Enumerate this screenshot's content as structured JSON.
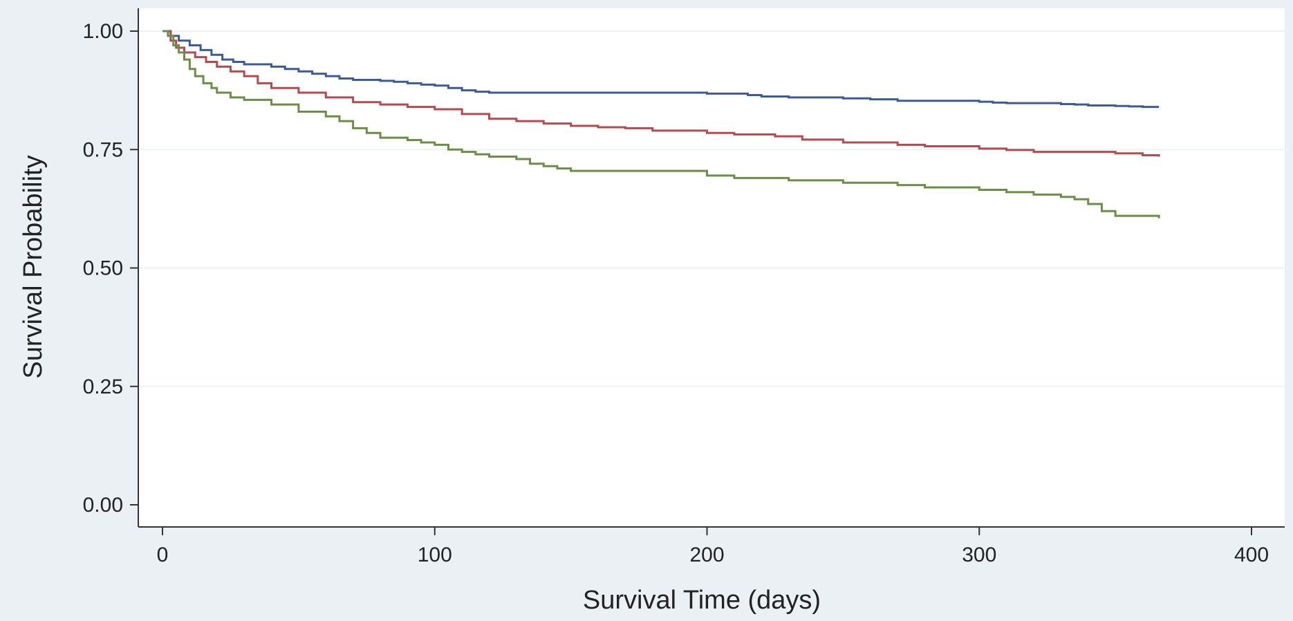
{
  "chart_data": {
    "type": "line",
    "title": "",
    "xlabel": "Survival Time (days)",
    "ylabel": "Survival Probability",
    "xlim": [
      0,
      400
    ],
    "ylim": [
      0,
      1
    ],
    "x_ticks": [
      "0",
      "100",
      "200",
      "300",
      "400"
    ],
    "y_ticks": [
      "0.00",
      "0.25",
      "0.50",
      "0.75",
      "1.00"
    ],
    "grid": true,
    "step": true,
    "series": [
      {
        "color": "#3c5a94",
        "x": [
          0,
          3,
          6,
          10,
          14,
          18,
          22,
          26,
          30,
          40,
          45,
          50,
          55,
          60,
          65,
          70,
          80,
          85,
          90,
          95,
          100,
          105,
          110,
          115,
          120,
          150,
          200,
          215,
          220,
          230,
          250,
          260,
          270,
          300,
          305,
          310,
          330,
          335,
          340,
          350,
          355,
          360,
          366
        ],
        "y": [
          1.0,
          0.99,
          0.98,
          0.97,
          0.96,
          0.95,
          0.94,
          0.935,
          0.93,
          0.925,
          0.92,
          0.915,
          0.91,
          0.905,
          0.9,
          0.897,
          0.895,
          0.893,
          0.89,
          0.887,
          0.885,
          0.88,
          0.875,
          0.872,
          0.87,
          0.87,
          0.868,
          0.865,
          0.862,
          0.86,
          0.858,
          0.856,
          0.853,
          0.851,
          0.849,
          0.848,
          0.846,
          0.845,
          0.843,
          0.842,
          0.841,
          0.84,
          0.84
        ]
      },
      {
        "color": "#b5494f",
        "x": [
          0,
          3,
          5,
          8,
          12,
          16,
          20,
          25,
          30,
          35,
          40,
          50,
          60,
          70,
          80,
          90,
          100,
          110,
          120,
          130,
          140,
          150,
          160,
          170,
          180,
          200,
          210,
          225,
          235,
          250,
          270,
          280,
          300,
          310,
          320,
          350,
          360,
          366
        ],
        "y": [
          1.0,
          0.98,
          0.965,
          0.955,
          0.945,
          0.935,
          0.925,
          0.915,
          0.905,
          0.89,
          0.88,
          0.87,
          0.86,
          0.85,
          0.845,
          0.84,
          0.835,
          0.825,
          0.815,
          0.81,
          0.805,
          0.8,
          0.797,
          0.795,
          0.79,
          0.785,
          0.782,
          0.778,
          0.771,
          0.765,
          0.76,
          0.757,
          0.752,
          0.749,
          0.745,
          0.742,
          0.738,
          0.735
        ]
      },
      {
        "color": "#6b8d47",
        "x": [
          0,
          2,
          4,
          6,
          8,
          10,
          12,
          15,
          18,
          20,
          25,
          30,
          40,
          50,
          60,
          65,
          70,
          75,
          80,
          90,
          95,
          100,
          105,
          110,
          115,
          120,
          130,
          135,
          140,
          145,
          150,
          200,
          210,
          230,
          250,
          270,
          280,
          300,
          310,
          320,
          330,
          335,
          340,
          345,
          350,
          366
        ],
        "y": [
          1.0,
          0.99,
          0.97,
          0.955,
          0.94,
          0.92,
          0.905,
          0.89,
          0.88,
          0.87,
          0.86,
          0.855,
          0.845,
          0.83,
          0.82,
          0.81,
          0.795,
          0.785,
          0.775,
          0.77,
          0.765,
          0.76,
          0.75,
          0.745,
          0.74,
          0.735,
          0.73,
          0.72,
          0.715,
          0.71,
          0.705,
          0.695,
          0.69,
          0.685,
          0.68,
          0.675,
          0.67,
          0.665,
          0.66,
          0.655,
          0.65,
          0.645,
          0.635,
          0.62,
          0.61,
          0.605
        ]
      }
    ]
  }
}
